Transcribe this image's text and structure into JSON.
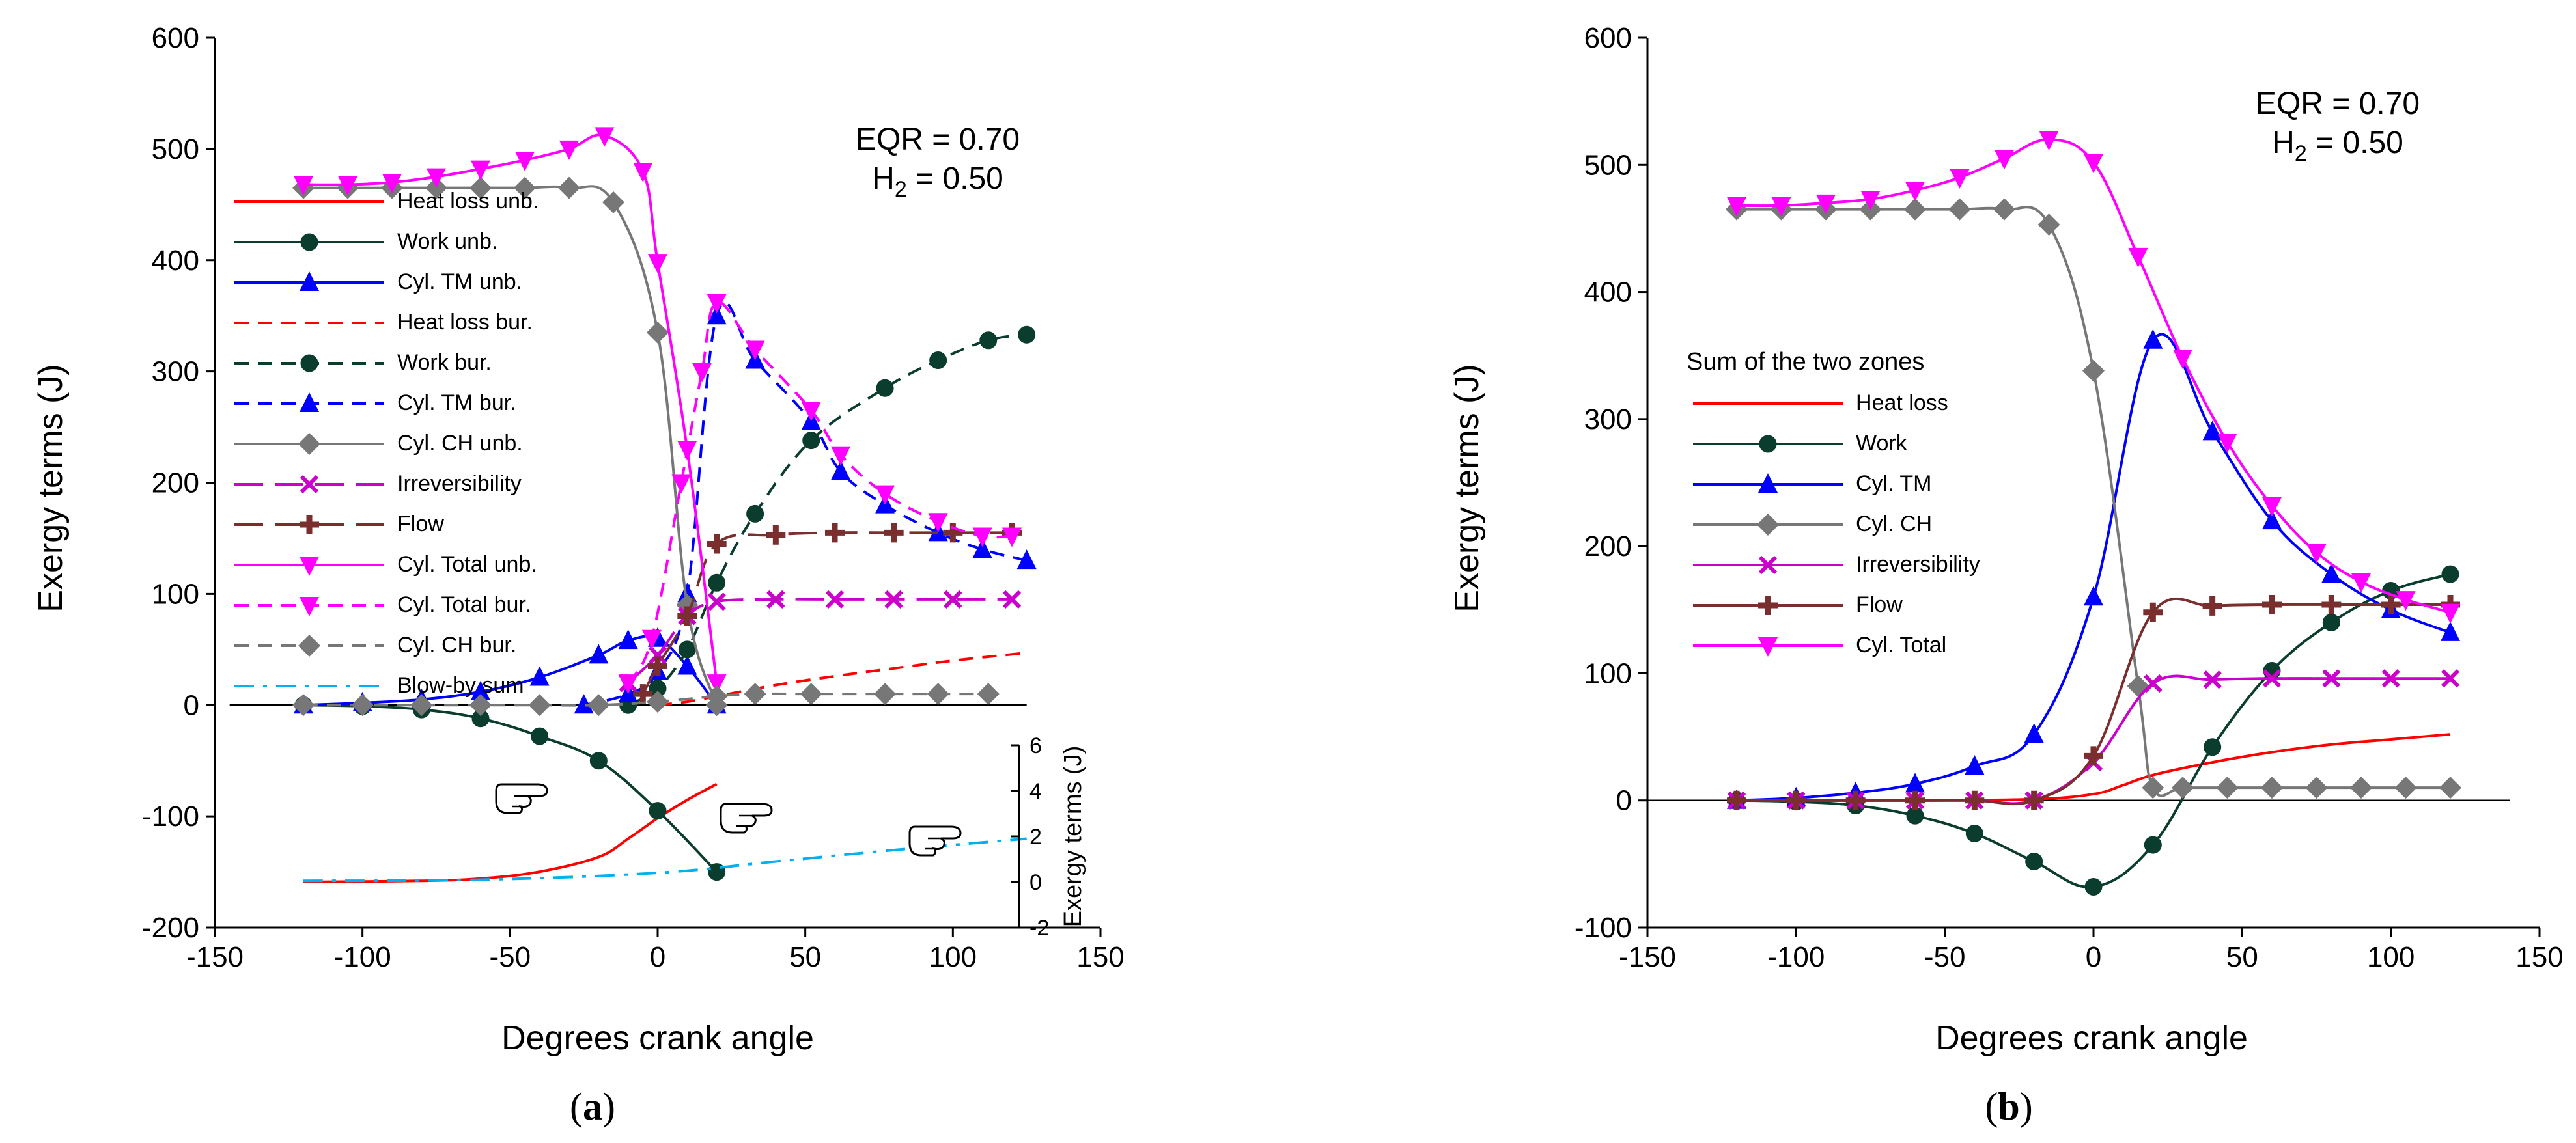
{
  "colors": {
    "red": "#ff0000",
    "dark_green": "#0b3d2e",
    "blue": "#0000ff",
    "gray": "#777777",
    "magenta": "#cc00cc",
    "brown": "#7a2e2e",
    "pink": "#ff00ff",
    "cyan": "#00b0f0"
  },
  "chart_data": [
    {
      "type": "line",
      "panel_label_open": "(",
      "panel_label_letter": "a",
      "panel_label_close": ")",
      "xlabel": "Degrees crank angle",
      "ylabel": "Exergy terms (J)",
      "xlim": [
        -150,
        150
      ],
      "ylim": [
        -200,
        600
      ],
      "xticks": [
        -150,
        -100,
        -50,
        0,
        50,
        100,
        150
      ],
      "yticks": [
        -200,
        -100,
        0,
        100,
        200,
        300,
        400,
        500,
        600
      ],
      "annotation_line1": "EQR = 0.70",
      "annotation_line2_prefix": "H",
      "annotation_line2_sub": "2",
      "annotation_line2_suffix": " = 0.50",
      "legend_placement": "left",
      "series": [
        {
          "name": "Heat loss unb.",
          "color": "#ff0000",
          "dash": "solid",
          "marker": "none",
          "axis": "inset",
          "x": [
            -120,
            -80,
            -60,
            -40,
            -20,
            -10,
            0,
            10,
            20
          ],
          "y": [
            0,
            0.05,
            0.15,
            0.45,
            1.1,
            1.9,
            2.8,
            3.6,
            4.3
          ]
        },
        {
          "name": "Work unb.",
          "color": "#0b3d2e",
          "dash": "solid",
          "marker": "circle",
          "axis": "main",
          "x": [
            -120,
            -100,
            -80,
            -60,
            -40,
            -20,
            0,
            20
          ],
          "y": [
            0,
            -1,
            -4,
            -12,
            -28,
            -50,
            -95,
            -150
          ]
        },
        {
          "name": "Cyl. TM unb.",
          "color": "#0000ff",
          "dash": "solid",
          "marker": "triangle-up",
          "axis": "main",
          "x": [
            -120,
            -100,
            -80,
            -60,
            -40,
            -20,
            -10,
            0,
            10,
            20
          ],
          "y": [
            0,
            2,
            5,
            12,
            25,
            45,
            58,
            60,
            35,
            0
          ]
        },
        {
          "name": "Heat loss bur.",
          "color": "#ff0000",
          "dash": "dashed",
          "marker": "none",
          "axis": "main",
          "x": [
            0,
            10,
            20,
            40,
            60,
            80,
            100,
            125
          ],
          "y": [
            0,
            3,
            8,
            18,
            26,
            33,
            40,
            47
          ]
        },
        {
          "name": "Work bur.",
          "color": "#0b3d2e",
          "dash": "dashed",
          "marker": "circle",
          "axis": "main",
          "x": [
            -10,
            0,
            10,
            20,
            33,
            52,
            77,
            95,
            112,
            125
          ],
          "y": [
            0,
            15,
            50,
            110,
            172,
            238,
            285,
            310,
            328,
            333
          ]
        },
        {
          "name": "Cyl. TM bur.",
          "color": "#0000ff",
          "dash": "dashed",
          "marker": "triangle-up",
          "axis": "main",
          "x": [
            -25,
            -10,
            0,
            10,
            20,
            33,
            52,
            62,
            77,
            95,
            110,
            125
          ],
          "y": [
            0,
            10,
            30,
            100,
            350,
            310,
            255,
            210,
            180,
            155,
            140,
            130
          ]
        },
        {
          "name": "Cyl. CH unb.",
          "color": "#777777",
          "dash": "solid",
          "marker": "diamond",
          "axis": "main",
          "x": [
            -120,
            -105,
            -90,
            -75,
            -60,
            -45,
            -30,
            -15,
            0,
            10,
            20
          ],
          "y": [
            465,
            465,
            465,
            465,
            465,
            465,
            465,
            452,
            335,
            90,
            0
          ]
        },
        {
          "name": "Irreversibility",
          "color": "#cc00cc",
          "dash": "long-dash",
          "marker": "x",
          "axis": "main",
          "x": [
            -10,
            0,
            10,
            20,
            40,
            60,
            80,
            100,
            120
          ],
          "y": [
            20,
            45,
            80,
            93,
            95,
            95,
            95,
            95,
            95
          ]
        },
        {
          "name": "Flow",
          "color": "#7a2e2e",
          "dash": "long-dash",
          "marker": "plus",
          "axis": "main",
          "x": [
            -5,
            0,
            10,
            20,
            40,
            60,
            80,
            100,
            120
          ],
          "y": [
            10,
            35,
            80,
            145,
            153,
            155,
            155,
            155,
            155
          ]
        },
        {
          "name": "Cyl. Total unb.",
          "color": "#ff00ff",
          "dash": "solid",
          "marker": "triangle-down",
          "axis": "main",
          "x": [
            -120,
            -105,
            -90,
            -75,
            -60,
            -45,
            -30,
            -18,
            -5,
            0,
            10,
            20
          ],
          "y": [
            468,
            468,
            470,
            475,
            482,
            490,
            500,
            512,
            480,
            398,
            230,
            20
          ]
        },
        {
          "name": "Cyl. Total bur.",
          "color": "#ff00ff",
          "dash": "dashed",
          "marker": "triangle-down",
          "axis": "main",
          "x": [
            -10,
            -2,
            8,
            15,
            20,
            33,
            52,
            62,
            77,
            95,
            110,
            120
          ],
          "y": [
            20,
            60,
            200,
            300,
            362,
            320,
            265,
            225,
            190,
            165,
            152,
            152
          ]
        },
        {
          "name": "Cyl. CH bur.",
          "color": "#777777",
          "dash": "dashed",
          "marker": "diamond",
          "axis": "main",
          "x": [
            -120,
            -100,
            -80,
            -60,
            -40,
            -20,
            0,
            20,
            33,
            52,
            77,
            95,
            112
          ],
          "y": [
            0,
            0,
            0,
            0,
            0,
            0,
            3,
            8,
            10,
            10,
            10,
            10,
            10
          ]
        },
        {
          "name": "Blow-by sum",
          "color": "#00b0f0",
          "dash": "dash-dot",
          "marker": "none",
          "axis": "inset",
          "x": [
            -120,
            -60,
            0,
            40,
            80,
            125
          ],
          "y": [
            0.05,
            0.1,
            0.4,
            0.9,
            1.4,
            1.9
          ]
        }
      ],
      "inset": {
        "ylabel": "Exergy terms (J)",
        "ylim": [
          -2,
          6
        ],
        "yticks": [
          -2,
          0,
          2,
          4,
          6
        ]
      }
    },
    {
      "type": "line",
      "panel_label_open": "(",
      "panel_label_letter": "b",
      "panel_label_close": ")",
      "xlabel": "Degrees crank angle",
      "ylabel": "Exergy terms (J)",
      "xlim": [
        -150,
        150
      ],
      "ylim": [
        -100,
        600
      ],
      "xticks": [
        -150,
        -100,
        -50,
        0,
        50,
        100,
        150
      ],
      "yticks": [
        -100,
        0,
        100,
        200,
        300,
        400,
        500,
        600
      ],
      "annotation_line1": "EQR = 0.70",
      "annotation_line2_prefix": "H",
      "annotation_line2_sub": "2",
      "annotation_line2_suffix": " = 0.50",
      "legend_title": "Sum of the two zones",
      "legend_placement": "left",
      "series": [
        {
          "name": "Heat loss",
          "color": "#ff0000",
          "dash": "solid",
          "marker": "none",
          "x": [
            -120,
            -60,
            -20,
            0,
            10,
            20,
            40,
            60,
            80,
            100,
            120
          ],
          "y": [
            0,
            0,
            1,
            5,
            12,
            20,
            30,
            38,
            44,
            48,
            52
          ]
        },
        {
          "name": "Work",
          "color": "#0b3d2e",
          "dash": "solid",
          "marker": "circle",
          "x": [
            -120,
            -100,
            -80,
            -60,
            -40,
            -20,
            0,
            20,
            40,
            60,
            80,
            100,
            120
          ],
          "y": [
            0,
            -1,
            -4,
            -12,
            -26,
            -48,
            -68,
            -35,
            42,
            102,
            140,
            165,
            178
          ]
        },
        {
          "name": "Cyl. TM",
          "color": "#0000ff",
          "dash": "solid",
          "marker": "triangle-up",
          "x": [
            -120,
            -100,
            -80,
            -60,
            -40,
            -20,
            0,
            20,
            40,
            60,
            80,
            100,
            120
          ],
          "y": [
            0,
            2,
            6,
            13,
            27,
            52,
            160,
            362,
            290,
            220,
            178,
            150,
            132
          ]
        },
        {
          "name": "Cyl. CH",
          "color": "#777777",
          "dash": "solid",
          "marker": "diamond",
          "x": [
            -120,
            -105,
            -90,
            -75,
            -60,
            -45,
            -30,
            -15,
            0,
            15,
            20,
            30,
            45,
            60,
            75,
            90,
            105,
            120
          ],
          "y": [
            465,
            465,
            465,
            465,
            465,
            465,
            465,
            453,
            338,
            90,
            10,
            10,
            10,
            10,
            10,
            10,
            10,
            10
          ]
        },
        {
          "name": "Irreversibility",
          "color": "#cc00cc",
          "dash": "solid",
          "marker": "x",
          "x": [
            -120,
            -100,
            -80,
            -60,
            -40,
            -20,
            0,
            20,
            40,
            60,
            80,
            100,
            120
          ],
          "y": [
            0,
            0,
            0,
            0,
            0,
            0,
            30,
            92,
            95,
            96,
            96,
            96,
            96
          ]
        },
        {
          "name": "Flow",
          "color": "#7a2e2e",
          "dash": "solid",
          "marker": "plus",
          "x": [
            -120,
            -100,
            -80,
            -60,
            -40,
            -20,
            0,
            20,
            40,
            60,
            80,
            100,
            120
          ],
          "y": [
            0,
            0,
            0,
            0,
            0,
            0,
            35,
            148,
            153,
            154,
            154,
            154,
            154
          ]
        },
        {
          "name": "Cyl. Total",
          "color": "#ff00ff",
          "dash": "solid",
          "marker": "triangle-down",
          "x": [
            -120,
            -105,
            -90,
            -75,
            -60,
            -45,
            -30,
            -15,
            0,
            15,
            30,
            45,
            60,
            75,
            90,
            105,
            120
          ],
          "y": [
            468,
            468,
            470,
            473,
            480,
            490,
            505,
            520,
            502,
            428,
            348,
            282,
            232,
            195,
            172,
            158,
            148
          ]
        }
      ]
    }
  ]
}
